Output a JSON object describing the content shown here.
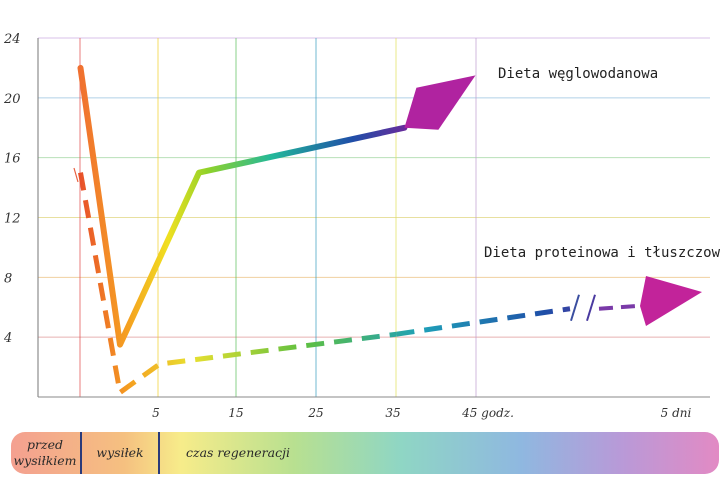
{
  "chart_data": {
    "type": "line",
    "ylim": [
      0,
      24
    ],
    "y_ticks": [
      "4",
      "8",
      "12",
      "16",
      "20",
      "24"
    ],
    "x_ticks": [
      "5",
      "15",
      "25",
      "35",
      "45 godz.",
      "5 dni"
    ],
    "grid": true,
    "series": [
      {
        "name": "Dieta węglowodanowa",
        "style": "solid",
        "points": [
          {
            "x": -5,
            "y": 22
          },
          {
            "x": 0,
            "y": 3.5
          },
          {
            "x": 10,
            "y": 15
          },
          {
            "x": 36,
            "y": 18
          },
          {
            "x": 45,
            "y": 21.5
          }
        ]
      },
      {
        "name": "Dieta proteinowa i tłuszczowa",
        "style": "dashed",
        "points": [
          {
            "x": -5,
            "y": 15
          },
          {
            "x": 0,
            "y": 0.3
          },
          {
            "x": 5,
            "y": 2.2
          },
          {
            "x": 35,
            "y": 4.2
          },
          {
            "x": 55,
            "y": 6
          }
        ]
      }
    ],
    "phases": [
      {
        "label_line1": "przed",
        "label_line2": "wysiłkiem"
      },
      {
        "label_line1": "wysiłek"
      },
      {
        "label_line1": "czas regeneracji"
      }
    ]
  }
}
